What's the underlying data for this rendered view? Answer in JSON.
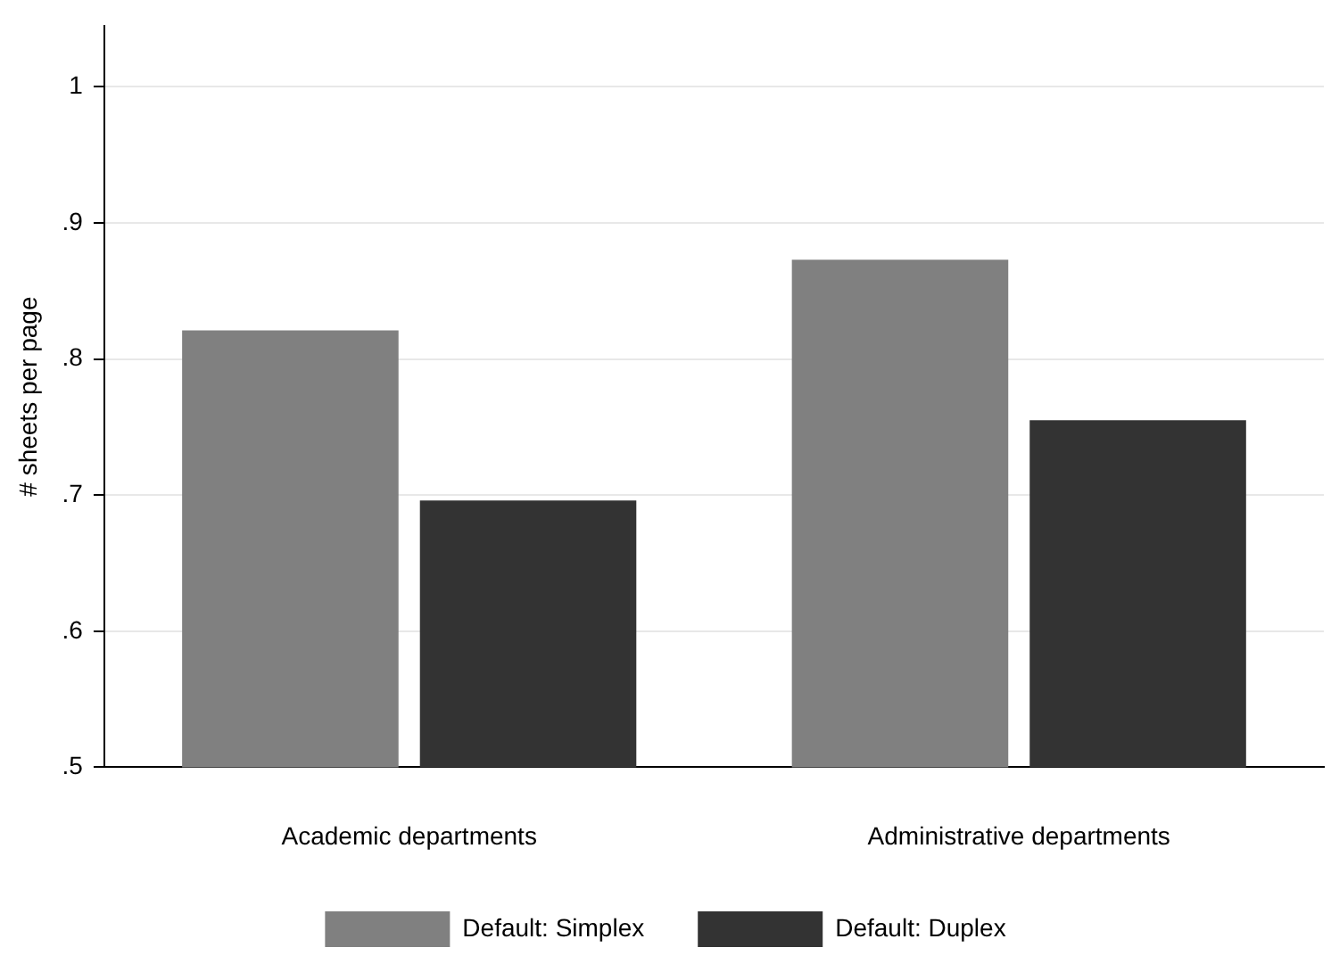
{
  "chart_data": {
    "type": "bar",
    "ylabel": "# sheets per page",
    "categories": [
      "Academic departments",
      "Administrative departments"
    ],
    "series": [
      {
        "name": "Default: Simplex",
        "color": "#808080",
        "values": [
          0.821,
          0.873
        ]
      },
      {
        "name": "Default: Duplex",
        "color": "#333333",
        "values": [
          0.696,
          0.755
        ]
      }
    ],
    "ylim": [
      0.5,
      1.045
    ],
    "yticks": [
      {
        "value": 0.5,
        "label": ".5"
      },
      {
        "value": 0.6,
        "label": ".6"
      },
      {
        "value": 0.7,
        "label": ".7"
      },
      {
        "value": 0.8,
        "label": ".8"
      },
      {
        "value": 0.9,
        "label": ".9"
      },
      1
    ],
    "grid": "y",
    "legend": "bottom"
  }
}
